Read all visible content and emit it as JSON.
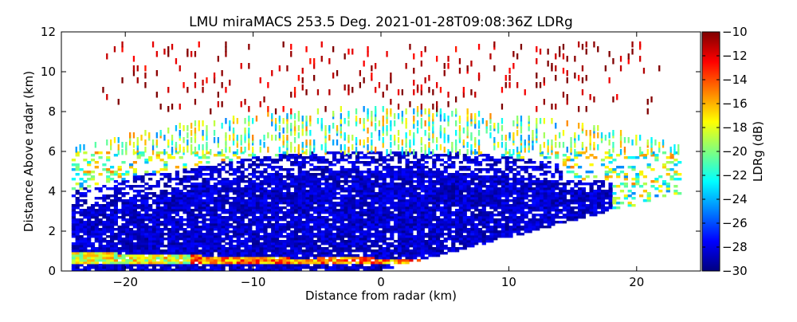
{
  "chart_data": {
    "type": "heatmap",
    "title": "LMU miraMACS 253.5 Deg. 2021-01-28T09:08:36Z  LDRg",
    "xlabel": "Distance from radar (km)",
    "ylabel": "Distance Above radar  (km)",
    "xlim": [
      -25,
      25
    ],
    "ylim": [
      0,
      12
    ],
    "xticks": [
      -20,
      -10,
      0,
      10,
      20
    ],
    "yticks": [
      0,
      2,
      4,
      6,
      8,
      10,
      12
    ],
    "grid": false,
    "colorbar": {
      "label": "LDRg (dB)",
      "min": -30,
      "max": -10,
      "ticks": [
        -30,
        -28,
        -26,
        -24,
        -22,
        -20,
        -18,
        -16,
        -14,
        -12,
        -10
      ],
      "colormap": "jet"
    },
    "regions": [
      {
        "description": "precipitation core",
        "ldr_db": -29,
        "x_range": [
          -24,
          18
        ],
        "height_range": [
          0,
          6
        ]
      },
      {
        "description": "melting layer bright band",
        "ldr_db": -16,
        "x_range": [
          -24,
          4
        ],
        "height_range": [
          0.3,
          0.9
        ]
      },
      {
        "description": "upper ice layer",
        "ldr_db": -20,
        "x_range": [
          -24,
          23
        ],
        "height_range": [
          6,
          8
        ]
      },
      {
        "description": "sparse echoes aloft",
        "ldr_db": -11,
        "x_range": [
          -22,
          22
        ],
        "height_range": [
          8,
          11.5
        ]
      }
    ]
  }
}
